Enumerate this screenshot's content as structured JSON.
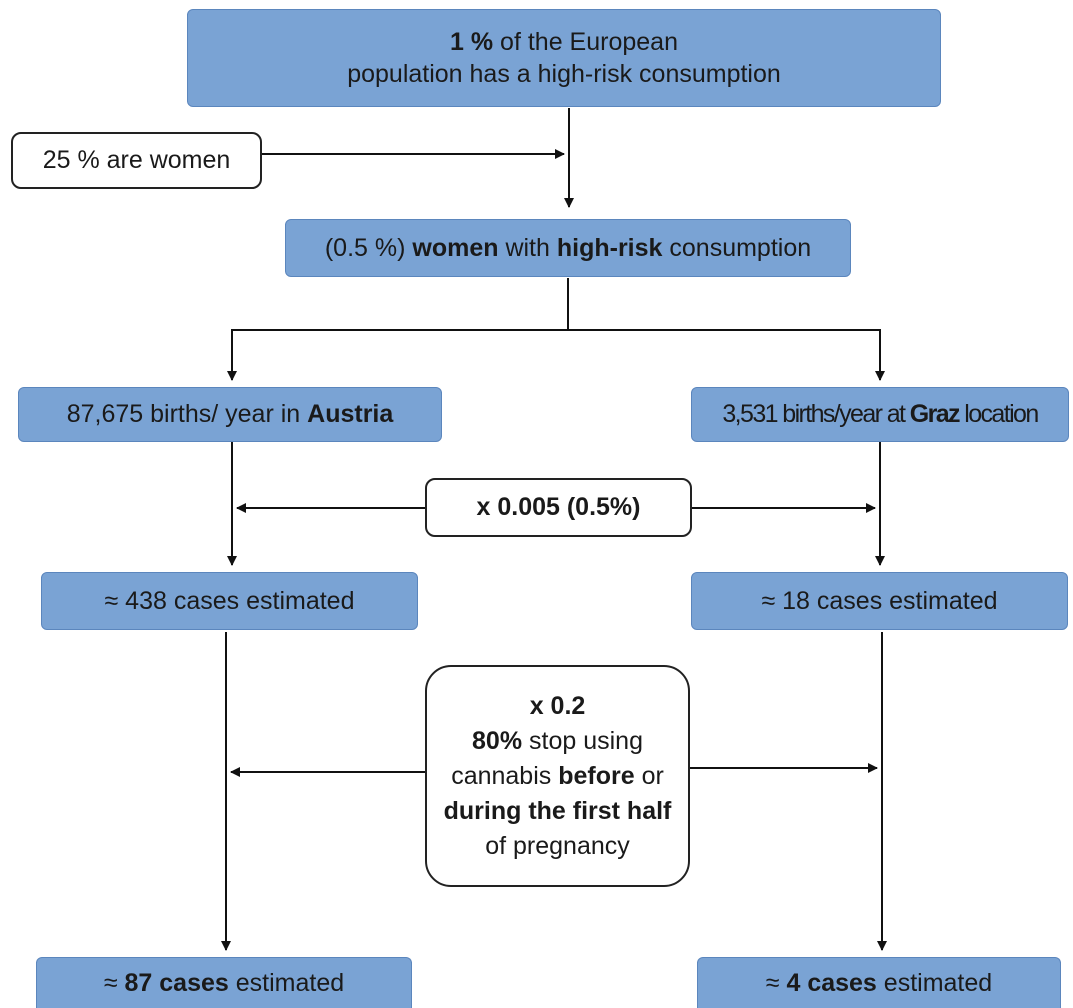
{
  "colors": {
    "box_fill": "#7aa3d4",
    "box_border": "#5b86bd",
    "line": "#111111"
  },
  "top": {
    "pct": "1 %",
    "rest": " of the European",
    "line2": "population has a high-risk consumption"
  },
  "women_share": {
    "text": "25 % are women"
  },
  "women_risk": {
    "pre": "(0.5 %) ",
    "b1": "women",
    "mid": " with ",
    "b2": "high-risk",
    "post": " consumption"
  },
  "austria_births": {
    "text": "87,675 births/ year in ",
    "bold": "Austria"
  },
  "graz_births": {
    "text": "3,531 births/year at ",
    "bold": "Graz",
    "post": " location"
  },
  "factor1": {
    "text": "x 0.005 (0.5%)"
  },
  "austria_cases": {
    "text": "≈ 438 cases estimated"
  },
  "graz_cases": {
    "text": "≈ 18 cases estimated"
  },
  "factor2": {
    "l1": "x 0.2",
    "l2b": "80%",
    "l2": " stop using",
    "l3": "cannabis ",
    "l3b": "before",
    "l3c": " or",
    "l4b": "during the first half",
    "l5": "of pregnancy"
  },
  "austria_final": {
    "pre": "≈ ",
    "bold": "87 cases",
    "post": " estimated"
  },
  "graz_final": {
    "pre": "≈ ",
    "bold": "4 cases",
    "post": " estimated"
  }
}
